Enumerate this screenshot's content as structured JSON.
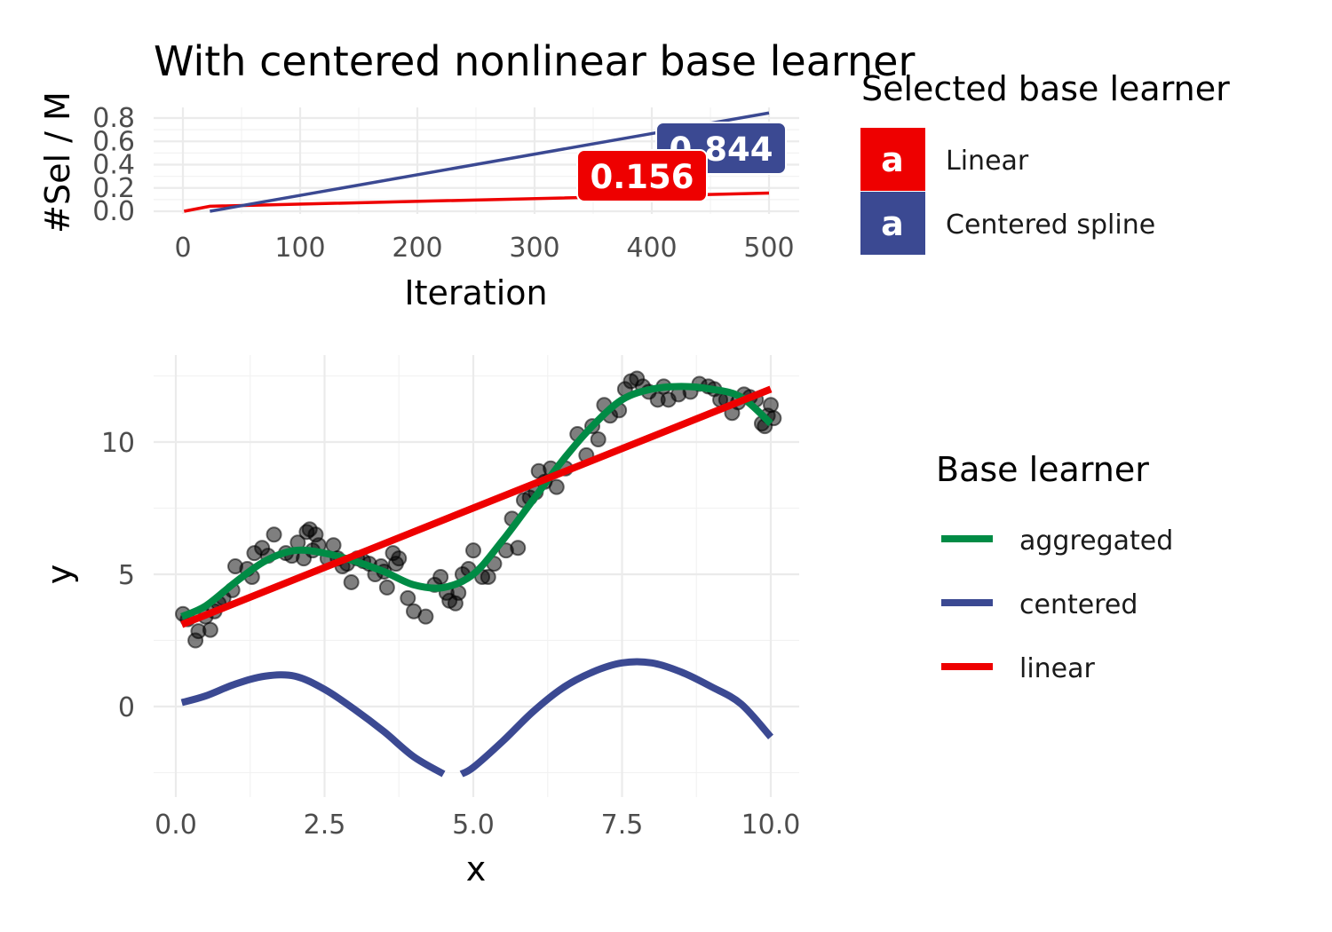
{
  "title": "With centered nonlinear base learner",
  "colors": {
    "linear": "#EE0000",
    "centered": "#3B4992",
    "aggregated": "#008B45",
    "points": "#000000"
  },
  "chart_data": [
    {
      "type": "line",
      "xlabel": "Iteration",
      "ylabel": "#Sel / M",
      "xlim": [
        0,
        500
      ],
      "ylim": [
        0,
        0.84
      ],
      "xticks": [
        "0",
        "100",
        "200",
        "300",
        "400",
        "500"
      ],
      "yticks": [
        "0.0",
        "0.2",
        "0.4",
        "0.6",
        "0.8"
      ],
      "grid": true,
      "legend": {
        "title": "Selected base learner",
        "position": "right",
        "symbol_text": "a",
        "items": [
          "Linear",
          "Centered spline"
        ]
      },
      "series": [
        {
          "name": "Linear",
          "x": [
            1,
            23,
            500
          ],
          "y": [
            0,
            0.043,
            0.156
          ]
        },
        {
          "name": "Centered spline",
          "x": [
            23,
            500
          ],
          "y": [
            0.0,
            0.844
          ]
        }
      ],
      "annotations": [
        {
          "series": "Centered spline",
          "label": "0.844",
          "x": 415,
          "y": 0.844
        },
        {
          "series": "Linear",
          "label": "0.156",
          "x": 340,
          "y": 0.156
        }
      ]
    },
    {
      "type": "scatter",
      "xlabel": "x",
      "ylabel": "y",
      "xlim": [
        0,
        10
      ],
      "ylim": [
        -3,
        13
      ],
      "xticks": [
        "0.0",
        "2.5",
        "5.0",
        "7.5",
        "10.0"
      ],
      "yticks": [
        "0",
        "5",
        "10"
      ],
      "grid": true,
      "legend": {
        "title": "Base learner",
        "position": "right",
        "items": [
          "aggregated",
          "centered",
          "linear"
        ]
      },
      "points": [
        [
          0.12,
          3.5
        ],
        [
          0.2,
          3.3
        ],
        [
          0.33,
          2.5
        ],
        [
          0.38,
          2.85
        ],
        [
          0.5,
          3.4
        ],
        [
          0.58,
          2.9
        ],
        [
          0.65,
          3.6
        ],
        [
          0.72,
          3.9
        ],
        [
          0.8,
          4.1
        ],
        [
          0.95,
          4.4
        ],
        [
          1.0,
          5.3
        ],
        [
          1.2,
          5.2
        ],
        [
          1.28,
          4.9
        ],
        [
          1.32,
          5.8
        ],
        [
          1.45,
          6.0
        ],
        [
          1.55,
          5.7
        ],
        [
          1.65,
          6.5
        ],
        [
          1.85,
          5.8
        ],
        [
          1.95,
          5.7
        ],
        [
          2.05,
          6.2
        ],
        [
          2.15,
          5.6
        ],
        [
          2.2,
          6.6
        ],
        [
          2.25,
          6.7
        ],
        [
          2.3,
          5.9
        ],
        [
          2.35,
          6.5
        ],
        [
          2.4,
          6.1
        ],
        [
          2.55,
          5.6
        ],
        [
          2.65,
          6.1
        ],
        [
          2.72,
          5.6
        ],
        [
          2.8,
          5.3
        ],
        [
          2.88,
          5.4
        ],
        [
          2.95,
          4.7
        ],
        [
          3.05,
          5.6
        ],
        [
          3.15,
          5.5
        ],
        [
          3.25,
          5.4
        ],
        [
          3.35,
          5.0
        ],
        [
          3.45,
          5.3
        ],
        [
          3.5,
          5.1
        ],
        [
          3.55,
          4.5
        ],
        [
          3.65,
          5.8
        ],
        [
          3.7,
          5.4
        ],
        [
          3.75,
          5.6
        ],
        [
          3.9,
          4.1
        ],
        [
          4.0,
          3.6
        ],
        [
          4.2,
          3.4
        ],
        [
          4.35,
          4.6
        ],
        [
          4.45,
          4.9
        ],
        [
          4.55,
          4.3
        ],
        [
          4.6,
          4.0
        ],
        [
          4.7,
          3.9
        ],
        [
          4.75,
          4.3
        ],
        [
          4.82,
          5.0
        ],
        [
          4.92,
          5.2
        ],
        [
          5.0,
          5.9
        ],
        [
          5.15,
          4.9
        ],
        [
          5.25,
          4.9
        ],
        [
          5.35,
          5.4
        ],
        [
          5.55,
          5.9
        ],
        [
          5.65,
          7.1
        ],
        [
          5.75,
          6.0
        ],
        [
          5.85,
          7.8
        ],
        [
          5.95,
          7.9
        ],
        [
          6.05,
          8.1
        ],
        [
          6.1,
          8.9
        ],
        [
          6.2,
          8.5
        ],
        [
          6.3,
          9.0
        ],
        [
          6.4,
          8.3
        ],
        [
          6.55,
          9.0
        ],
        [
          6.75,
          10.3
        ],
        [
          6.9,
          9.5
        ],
        [
          7.0,
          10.6
        ],
        [
          7.1,
          10.1
        ],
        [
          7.2,
          11.4
        ],
        [
          7.3,
          11.0
        ],
        [
          7.45,
          11.2
        ],
        [
          7.55,
          12.0
        ],
        [
          7.65,
          12.3
        ],
        [
          7.75,
          12.4
        ],
        [
          7.85,
          12.1
        ],
        [
          7.95,
          11.9
        ],
        [
          8.1,
          11.6
        ],
        [
          8.2,
          12.1
        ],
        [
          8.28,
          11.6
        ],
        [
          8.45,
          11.8
        ],
        [
          8.65,
          11.9
        ],
        [
          8.8,
          12.2
        ],
        [
          8.95,
          12.1
        ],
        [
          9.05,
          12.0
        ],
        [
          9.15,
          11.6
        ],
        [
          9.25,
          11.6
        ],
        [
          9.35,
          11.1
        ],
        [
          9.45,
          11.5
        ],
        [
          9.55,
          11.8
        ],
        [
          9.65,
          11.7
        ],
        [
          9.75,
          11.6
        ],
        [
          9.85,
          10.7
        ],
        [
          9.9,
          10.6
        ],
        [
          9.95,
          11.0
        ],
        [
          10.0,
          11.4
        ],
        [
          10.05,
          10.9
        ]
      ],
      "series": [
        {
          "name": "aggregated",
          "x": [
            0.1,
            0.5,
            1.0,
            1.5,
            2.0,
            2.5,
            3.0,
            3.5,
            4.0,
            4.5,
            5.0,
            5.5,
            6.0,
            6.5,
            7.0,
            7.5,
            8.0,
            8.5,
            9.0,
            9.5,
            10.0
          ],
          "y": [
            3.4,
            3.8,
            4.7,
            5.5,
            5.9,
            5.8,
            5.5,
            5.1,
            4.6,
            4.5,
            5.0,
            6.3,
            7.8,
            9.3,
            10.6,
            11.6,
            12.0,
            12.1,
            12.0,
            11.7,
            10.7
          ]
        },
        {
          "name": "centered",
          "segments": [
            {
              "x": [
                0.1,
                0.5,
                1.0,
                1.5,
                2.0,
                2.5,
                3.0,
                3.5,
                4.0,
                4.5
              ],
              "y": [
                0.15,
                0.4,
                0.85,
                1.15,
                1.15,
                0.65,
                -0.1,
                -0.95,
                -1.9,
                -2.55
              ]
            },
            {
              "x": [
                4.8,
                5.0,
                5.5,
                6.0,
                6.5,
                7.0,
                7.5,
                8.0,
                8.5,
                9.0,
                9.5,
                10.0
              ],
              "y": [
                -2.55,
                -2.3,
                -1.3,
                -0.2,
                0.7,
                1.3,
                1.65,
                1.65,
                1.3,
                0.75,
                0.1,
                -1.15
              ]
            }
          ]
        },
        {
          "name": "linear",
          "x": [
            0.1,
            10.0
          ],
          "y": [
            3.1,
            12.0
          ]
        }
      ]
    }
  ]
}
